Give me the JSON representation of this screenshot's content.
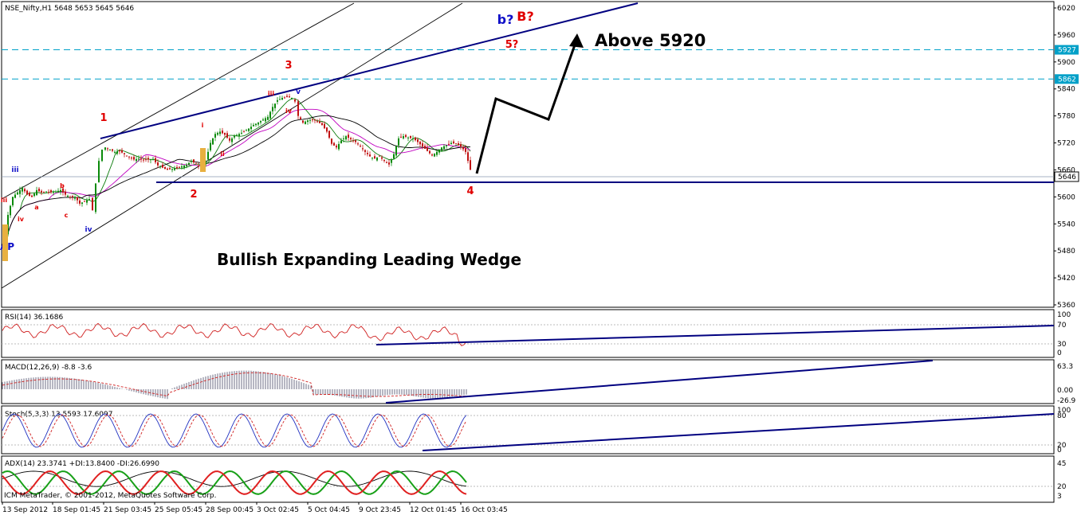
{
  "header": {
    "symbol_line": "NSE_Nifty,H1  5648 5653 5645 5646"
  },
  "chart_data": [
    {
      "type": "candlestick",
      "panel": "price",
      "ylim": [
        5360,
        6020
      ],
      "y_ticks": [
        "6020",
        "5960",
        "5900",
        "5840",
        "5780",
        "5720",
        "5660",
        "5600",
        "5540",
        "5480",
        "5420",
        "5360"
      ],
      "x_ticks": [
        "13 Sep 2012",
        "18 Sep 01:45",
        "21 Sep 03:45",
        "25 Sep 05:45",
        "28 Sep 00:45",
        "3 Oct 02:45",
        "5 Oct 04:45",
        "9 Oct 23:45",
        "12 Oct 01:45",
        "16 Oct 03:45"
      ],
      "last_price": "5646",
      "levels": [
        {
          "value": 5927,
          "label": "5927",
          "color": "#00a0c8",
          "style": "dashed"
        },
        {
          "value": 5862,
          "label": "5862",
          "color": "#00a0c8",
          "style": "dashed"
        },
        {
          "value": 5646,
          "label": "5646",
          "color": "#000080",
          "style": "solid"
        }
      ],
      "close_path": [
        [
          0,
          5480
        ],
        [
          6,
          5560
        ],
        [
          12,
          5600
        ],
        [
          18,
          5610
        ],
        [
          24,
          5620
        ],
        [
          30,
          5605
        ],
        [
          36,
          5600
        ],
        [
          42,
          5615
        ],
        [
          48,
          5610
        ],
        [
          54,
          5612
        ],
        [
          60,
          5610
        ],
        [
          66,
          5612
        ],
        [
          72,
          5615
        ],
        [
          78,
          5605
        ],
        [
          84,
          5600
        ],
        [
          90,
          5600
        ],
        [
          96,
          5585
        ],
        [
          102,
          5590
        ],
        [
          108,
          5595
        ],
        [
          112,
          5570
        ],
        [
          116,
          5630
        ],
        [
          120,
          5680
        ],
        [
          124,
          5705
        ],
        [
          128,
          5710
        ],
        [
          134,
          5705
        ],
        [
          140,
          5700
        ],
        [
          146,
          5702
        ],
        [
          152,
          5695
        ],
        [
          158,
          5688
        ],
        [
          164,
          5683
        ],
        [
          170,
          5685
        ],
        [
          176,
          5682
        ],
        [
          182,
          5683
        ],
        [
          188,
          5684
        ],
        [
          194,
          5670
        ],
        [
          200,
          5665
        ],
        [
          206,
          5660
        ],
        [
          212,
          5662
        ],
        [
          218,
          5664
        ],
        [
          224,
          5668
        ],
        [
          230,
          5672
        ],
        [
          236,
          5680
        ],
        [
          242,
          5673
        ],
        [
          248,
          5664
        ],
        [
          254,
          5680
        ],
        [
          260,
          5720
        ],
        [
          266,
          5740
        ],
        [
          272,
          5745
        ],
        [
          278,
          5738
        ],
        [
          284,
          5725
        ],
        [
          290,
          5735
        ],
        [
          296,
          5740
        ],
        [
          302,
          5745
        ],
        [
          308,
          5752
        ],
        [
          314,
          5760
        ],
        [
          320,
          5765
        ],
        [
          326,
          5772
        ],
        [
          332,
          5778
        ],
        [
          338,
          5800
        ],
        [
          344,
          5815
        ],
        [
          350,
          5820
        ],
        [
          356,
          5822
        ],
        [
          362,
          5820
        ],
        [
          366,
          5812
        ],
        [
          370,
          5780
        ],
        [
          376,
          5765
        ],
        [
          382,
          5770
        ],
        [
          388,
          5772
        ],
        [
          394,
          5768
        ],
        [
          400,
          5760
        ],
        [
          406,
          5745
        ],
        [
          412,
          5718
        ],
        [
          418,
          5710
        ],
        [
          424,
          5725
        ],
        [
          430,
          5735
        ],
        [
          436,
          5728
        ],
        [
          442,
          5722
        ],
        [
          448,
          5712
        ],
        [
          454,
          5700
        ],
        [
          460,
          5690
        ],
        [
          466,
          5685
        ],
        [
          472,
          5690
        ],
        [
          478,
          5680
        ],
        [
          484,
          5672
        ],
        [
          490,
          5695
        ],
        [
          496,
          5730
        ],
        [
          502,
          5735
        ],
        [
          508,
          5732
        ],
        [
          514,
          5730
        ],
        [
          520,
          5722
        ],
        [
          526,
          5712
        ],
        [
          532,
          5702
        ],
        [
          538,
          5692
        ],
        [
          544,
          5700
        ],
        [
          550,
          5710
        ],
        [
          556,
          5715
        ],
        [
          562,
          5720
        ],
        [
          568,
          5718
        ],
        [
          574,
          5712
        ],
        [
          580,
          5700
        ],
        [
          586,
          5660
        ],
        [
          590,
          5648
        ]
      ],
      "series": [
        {
          "name": "",
          "color": "#0a7a0a"
        },
        {
          "name": "",
          "color": "#c000c0"
        },
        {
          "name": "",
          "color": "#000000"
        }
      ],
      "annotations": {
        "waves_red": [
          {
            "text": "1",
            "x": 130,
            "y": 152
          },
          {
            "text": "2",
            "x": 243,
            "y": 248
          },
          {
            "text": "3",
            "x": 362,
            "y": 86
          },
          {
            "text": "4",
            "x": 590,
            "y": 244
          },
          {
            "text": "5?",
            "x": 642,
            "y": 60
          },
          {
            "text": "B?",
            "x": 659,
            "y": 26
          }
        ],
        "waves_small_red": [
          {
            "text": "iii",
            "x": 5,
            "y": 254
          },
          {
            "text": "iv",
            "x": 26,
            "y": 278
          },
          {
            "text": "a",
            "x": 46,
            "y": 263
          },
          {
            "text": "b",
            "x": 78,
            "y": 236
          },
          {
            "text": "c",
            "x": 83,
            "y": 273
          },
          {
            "text": "i",
            "x": 254,
            "y": 160
          },
          {
            "text": "iii",
            "x": 340,
            "y": 120
          },
          {
            "text": "iv",
            "x": 362,
            "y": 142
          },
          {
            "text": "ii",
            "x": 279,
            "y": 196
          }
        ],
        "waves_blue": [
          {
            "text": "b?",
            "x": 634,
            "y": 30
          },
          {
            "text": "iii",
            "x": 19,
            "y": 216
          },
          {
            "text": "iv",
            "x": 111,
            "y": 291
          },
          {
            "text": "v",
            "x": 374,
            "y": 118
          },
          {
            "text": "AP",
            "x": 9,
            "y": 314
          }
        ],
        "text_target": "Above 5920",
        "text_pattern": "Bullish Expanding Leading Wedge"
      }
    },
    {
      "type": "line",
      "panel": "rsi",
      "title": "RSI(14) 36.1686",
      "ylim": [
        0,
        100
      ],
      "y_ticks": [
        "100",
        "70",
        "30",
        "0"
      ]
    },
    {
      "type": "bar",
      "panel": "macd",
      "title": "MACD(12,26,9) -8.8 -3.6",
      "y_ticks": [
        "63.3",
        "0.00",
        "-26.9"
      ]
    },
    {
      "type": "line",
      "panel": "stoch",
      "title": "Stoch(5,3,3) 13.5593 17.6097",
      "ylim": [
        0,
        100
      ],
      "y_ticks": [
        "100",
        "80",
        "20",
        "0"
      ]
    },
    {
      "type": "line",
      "panel": "adx",
      "title": "ADX(14) 23.3741 +DI:13.8400 -DI:26.6990",
      "y_ticks": [
        "45",
        "20",
        "3"
      ]
    }
  ],
  "footer": {
    "copyright": "ICM MetaTrader, © 2001-2012, MetaQuotes Software Corp."
  }
}
